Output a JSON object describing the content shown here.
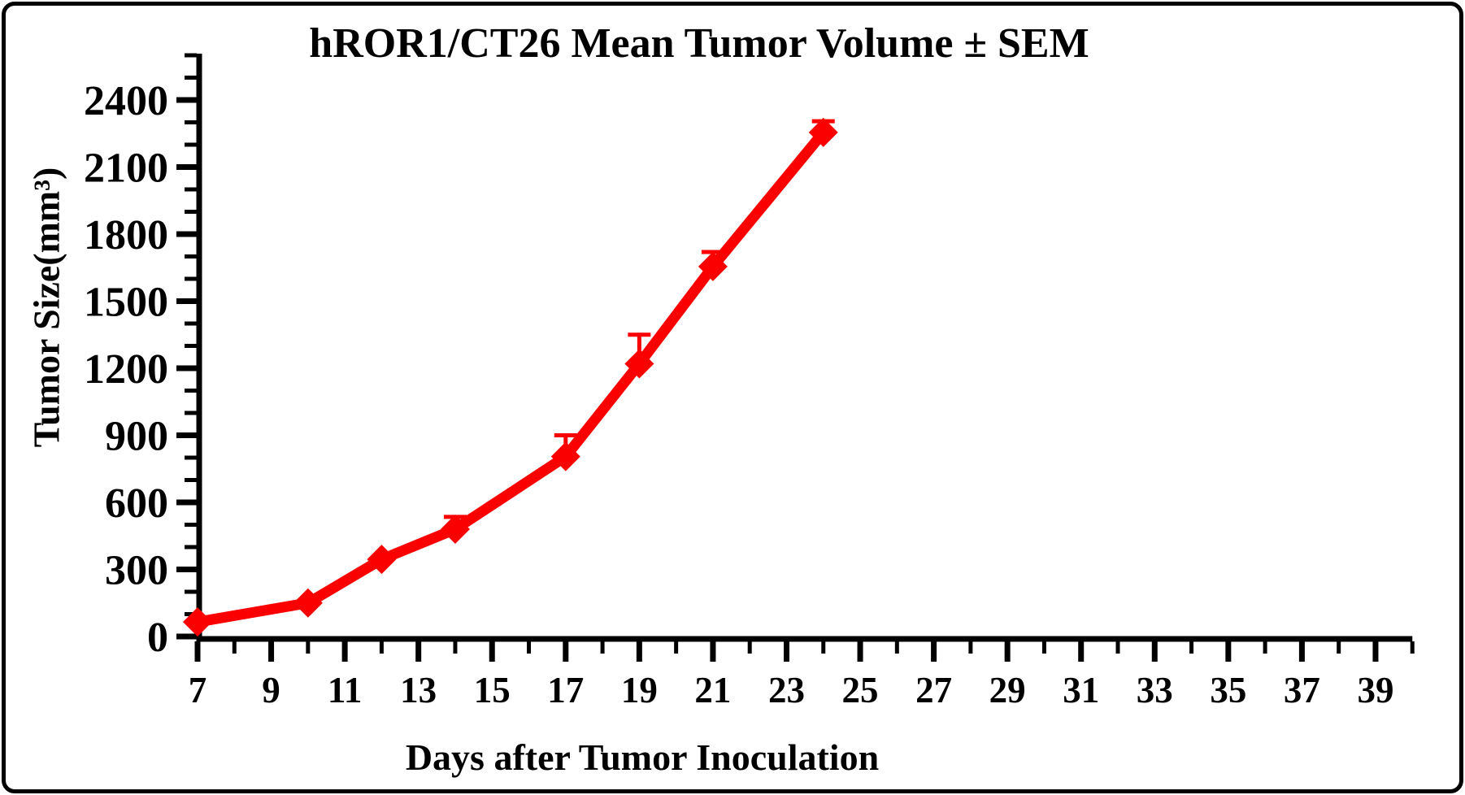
{
  "title": "hROR1/CT26 Mean Tumor Volume ± SEM",
  "colors": {
    "series": "#FA0000",
    "axis": "#000000",
    "background": "#FFFFFF",
    "frame_border": "#000000"
  },
  "chart_data": {
    "type": "line",
    "title": "hROR1/CT26 Mean Tumor Volume ± SEM",
    "xlabel": "Days after Tumor Inoculation",
    "ylabel": "Tumor Size(mm³)",
    "grid": false,
    "legend": false,
    "x_axis": {
      "min": 7,
      "max": 40,
      "major_tick_step": 2,
      "minor_tick_step": 1,
      "tick_labels": [
        7,
        9,
        11,
        13,
        15,
        17,
        19,
        21,
        23,
        25,
        27,
        29,
        31,
        33,
        35,
        37,
        39
      ]
    },
    "y_axis": {
      "min": 0,
      "max": 2600,
      "major_tick_step": 300,
      "minor_tick_step": 100,
      "tick_labels": [
        0,
        300,
        600,
        900,
        1200,
        1500,
        1800,
        2100,
        2400
      ]
    },
    "series": [
      {
        "name": "hROR1/CT26",
        "color": "#FA0000",
        "marker": "diamond",
        "x": [
          7,
          10,
          12,
          14,
          17,
          19,
          21,
          24
        ],
        "y": [
          65,
          150,
          345,
          480,
          805,
          1220,
          1655,
          2255
        ],
        "sem_upper": [
          0,
          0,
          0,
          55,
          95,
          130,
          65,
          50
        ]
      }
    ]
  }
}
